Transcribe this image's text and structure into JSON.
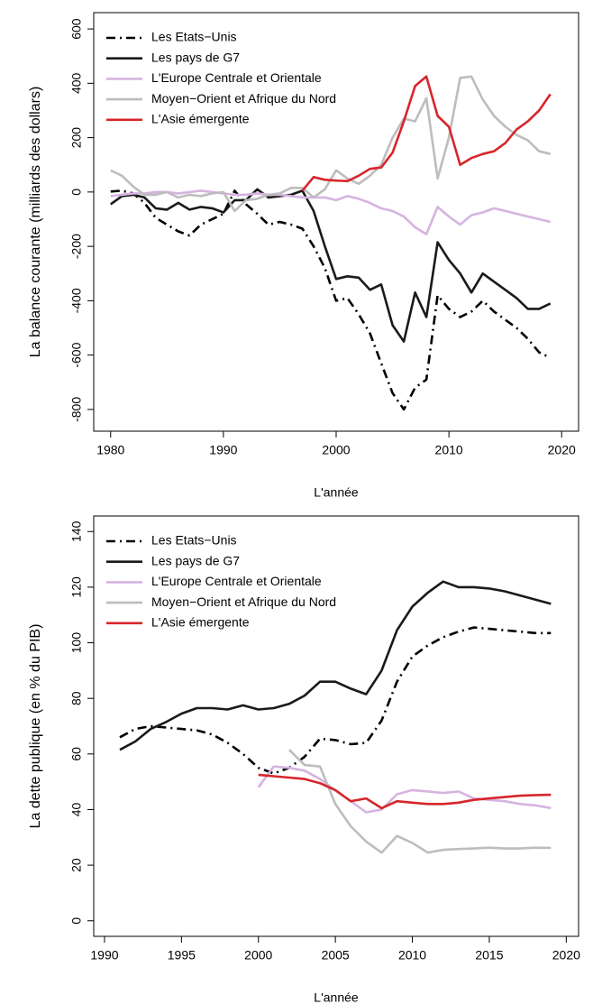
{
  "chart_data": [
    {
      "type": "line",
      "ylabel": "La balance courante (milliards des dollars)",
      "xlabel": "L'année",
      "x": [
        1980,
        1981,
        1982,
        1983,
        1984,
        1985,
        1986,
        1987,
        1988,
        1989,
        1990,
        1991,
        1992,
        1993,
        1994,
        1995,
        1996,
        1997,
        1998,
        1999,
        2000,
        2001,
        2002,
        2003,
        2004,
        2005,
        2006,
        2007,
        2008,
        2009,
        2010,
        2011,
        2012,
        2013,
        2014,
        2015,
        2016,
        2017,
        2018,
        2019
      ],
      "xlim": [
        1978.5,
        2021.5
      ],
      "xticks": [
        1980,
        1990,
        2000,
        2010,
        2020
      ],
      "ylim": [
        -880,
        660
      ],
      "yticks": [
        -800,
        -600,
        -400,
        -200,
        0,
        200,
        400,
        600
      ],
      "legend": "topleft",
      "series": [
        {
          "name": "Les Etats−Unis",
          "color": "#000000",
          "linestyle": "dashdot",
          "values": [
            2,
            5,
            -5,
            -40,
            -95,
            -120,
            -145,
            -160,
            -120,
            -100,
            -80,
            5,
            -45,
            -80,
            -120,
            -110,
            -120,
            -135,
            -200,
            -280,
            -400,
            -390,
            -450,
            -520,
            -630,
            -740,
            -800,
            -720,
            -690,
            -380,
            -430,
            -460,
            -440,
            -400,
            -440,
            -470,
            -500,
            -540,
            -590,
            -610
          ]
        },
        {
          "name": "Les pays de G7",
          "color": "#1a1a1a",
          "linestyle": "solid",
          "values": [
            -45,
            -15,
            -10,
            -20,
            -60,
            -65,
            -40,
            -65,
            -55,
            -60,
            -75,
            -30,
            -30,
            10,
            -20,
            -15,
            -10,
            5,
            -70,
            -200,
            -320,
            -310,
            -315,
            -360,
            -340,
            -490,
            -550,
            -370,
            -460,
            -185,
            -250,
            -300,
            -370,
            -300,
            -330,
            -360,
            -390,
            -430,
            -430,
            -410
          ]
        },
        {
          "name": "L'Europe Centrale et Orientale",
          "color": "#d6b3e0",
          "linestyle": "solid",
          "values": [
            -15,
            -10,
            -5,
            -5,
            0,
            0,
            -5,
            0,
            5,
            0,
            -5,
            -10,
            -10,
            -5,
            -10,
            -10,
            -15,
            -20,
            -20,
            -20,
            -30,
            -15,
            -25,
            -40,
            -60,
            -70,
            -90,
            -130,
            -155,
            -55,
            -90,
            -120,
            -85,
            -75,
            -60,
            -70,
            -80,
            -90,
            -100,
            -110
          ]
        },
        {
          "name": "Moyen−Orient et Afrique du Nord",
          "color": "#bdbdbd",
          "linestyle": "solid",
          "values": [
            80,
            60,
            20,
            -10,
            -10,
            0,
            -20,
            -10,
            -15,
            -5,
            0,
            -70,
            -30,
            -25,
            -10,
            -5,
            15,
            15,
            -20,
            10,
            80,
            50,
            30,
            60,
            100,
            200,
            270,
            260,
            345,
            50,
            200,
            420,
            425,
            340,
            280,
            240,
            210,
            190,
            150,
            140
          ]
        },
        {
          "name": "L'Asie émergente",
          "color": "#d7262c",
          "linestyle": "solid",
          "values": [
            null,
            null,
            null,
            null,
            null,
            null,
            null,
            null,
            null,
            null,
            null,
            null,
            null,
            null,
            null,
            null,
            null,
            5,
            55,
            45,
            42,
            40,
            60,
            85,
            90,
            145,
            260,
            390,
            425,
            280,
            240,
            100,
            125,
            140,
            150,
            180,
            230,
            260,
            300,
            360
          ]
        }
      ]
    },
    {
      "type": "line",
      "ylabel": "La dette publique (en % du PIB)",
      "xlabel": "L'année",
      "x": [
        1991,
        1992,
        1993,
        1994,
        1995,
        1996,
        1997,
        1998,
        1999,
        2000,
        2001,
        2002,
        2003,
        2004,
        2005,
        2006,
        2007,
        2008,
        2009,
        2010,
        2011,
        2012,
        2013,
        2014,
        2015,
        2016,
        2017,
        2018,
        2019
      ],
      "xlim": [
        1989.3,
        2020.8
      ],
      "xticks": [
        1990,
        1995,
        2000,
        2005,
        2010,
        2015,
        2020
      ],
      "ylim": [
        -5.6,
        145.6
      ],
      "yticks": [
        0,
        20,
        40,
        60,
        80,
        100,
        120,
        140
      ],
      "legend": "topleft",
      "series": [
        {
          "name": "Les Etats−Unis",
          "color": "#000000",
          "linestyle": "dashdot",
          "values": [
            66,
            69,
            70,
            69.5,
            69,
            68.5,
            67,
            64,
            60,
            55,
            53,
            55,
            59,
            65.5,
            65,
            63.5,
            64,
            72,
            86,
            95,
            99,
            102,
            104,
            105.5,
            105,
            104.5,
            104,
            103.5,
            103.5
          ]
        },
        {
          "name": "Les pays de G7",
          "color": "#1a1a1a",
          "linestyle": "solid",
          "values": [
            61.5,
            64.5,
            69,
            71.5,
            74.5,
            76.5,
            76.5,
            76,
            77.5,
            76,
            76.5,
            78,
            81,
            86,
            86,
            83.5,
            81.5,
            90,
            104.5,
            113,
            118,
            122,
            120,
            120,
            119.5,
            118.5,
            117,
            115.5,
            114
          ]
        },
        {
          "name": "L'Europe Centrale et Orientale",
          "color": "#d6b3e0",
          "linestyle": "solid",
          "values": [
            null,
            null,
            null,
            null,
            null,
            null,
            null,
            null,
            null,
            48,
            55.5,
            55,
            54,
            51,
            47,
            43,
            39,
            40,
            45.5,
            47,
            46.5,
            46,
            46.5,
            44,
            43.5,
            43,
            42,
            41.5,
            40.5
          ]
        },
        {
          "name": "Moyen−Orient et Afrique du Nord",
          "color": "#bdbdbd",
          "linestyle": "solid",
          "values": [
            null,
            null,
            null,
            null,
            null,
            null,
            null,
            null,
            null,
            null,
            null,
            61.5,
            56,
            55.5,
            42,
            34,
            28.5,
            24.5,
            30.5,
            28,
            24.5,
            25.5,
            25.8,
            26,
            26.3,
            26,
            26,
            26.3,
            26.2
          ]
        },
        {
          "name": "L'Asie émergente",
          "color": "#d7262c",
          "linestyle": "solid",
          "values": [
            null,
            null,
            null,
            null,
            null,
            null,
            null,
            null,
            null,
            52.5,
            52,
            51.5,
            51,
            49.5,
            47,
            43,
            44,
            40.5,
            43,
            42.5,
            42,
            42,
            42.5,
            43.5,
            44,
            44.5,
            45,
            45.2,
            45.3
          ]
        }
      ]
    }
  ]
}
